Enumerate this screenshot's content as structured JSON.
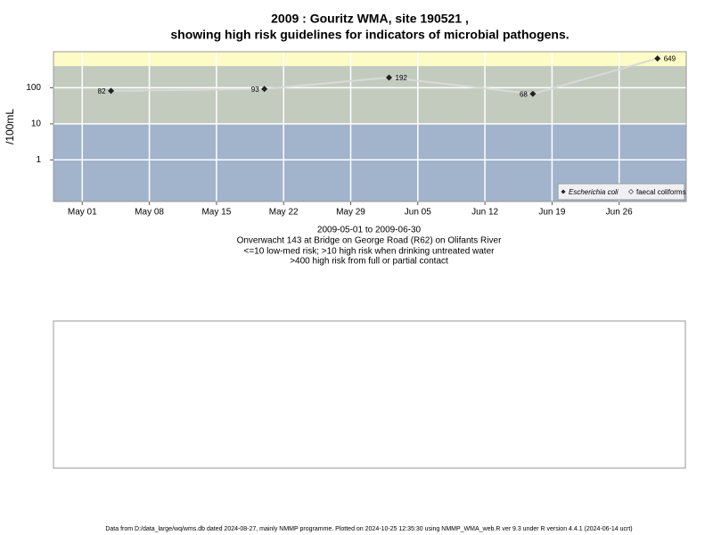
{
  "chart_data": {
    "type": "line",
    "title": "2009 : Gouritz WMA, site 190521 ,",
    "subtitle": "showing high risk guidelines for indicators of microbial pathogens.",
    "ylabel": "/100mL",
    "xlabel": "2009-05-01 to 2009-06-30",
    "notes": [
      "Onverwacht 143 at Bridge on George Road (R62) on Olifants River",
      "<=10 low-med risk; >10 high risk when drinking untreated water",
      ">400 high risk from full or partial contact"
    ],
    "footer": "Data from D:/data_large/wq/wms.db dated 2024-08-27, mainly NMMP programme. Plotted on 2024-10-25 12:35:30 using NMMP_WMA_web.R ver 9.3 under R version 4.4.1 (2024-06-14 ucrt)",
    "x": [
      "2009-05-04",
      "2009-05-20",
      "2009-06-02",
      "2009-06-17",
      "2009-06-30"
    ],
    "series": [
      {
        "name": "Escherichia coli",
        "color": "#222222",
        "line_color": "#d9d9d9",
        "values": [
          82,
          93,
          192,
          68,
          649
        ]
      },
      {
        "name": "faecal coliforms",
        "color": "#ffffff",
        "line_color": "#d9d9d9",
        "values": [
          null,
          null,
          null,
          null,
          null
        ]
      }
    ],
    "xlim": [
      "2009-04-28",
      "2009-07-03"
    ],
    "xticks": [
      {
        "value": "2009-05-01",
        "label": "May 01"
      },
      {
        "value": "2009-05-08",
        "label": "May 08"
      },
      {
        "value": "2009-05-15",
        "label": "May 15"
      },
      {
        "value": "2009-05-22",
        "label": "May 22"
      },
      {
        "value": "2009-05-29",
        "label": "May 29"
      },
      {
        "value": "2009-06-05",
        "label": "Jun 05"
      },
      {
        "value": "2009-06-12",
        "label": "Jun 12"
      },
      {
        "value": "2009-06-19",
        "label": "Jun 19"
      },
      {
        "value": "2009-06-26",
        "label": "Jun 26"
      }
    ],
    "ylim": [
      0.07,
      1000
    ],
    "yticks": [
      1,
      10,
      100
    ],
    "log_y": true,
    "grid": true,
    "legend": "lower right",
    "bands": [
      {
        "from": 400,
        "to": 1000,
        "color": "#fdfbc6"
      },
      {
        "from": 10,
        "to": 400,
        "color": "#c3cbbf"
      },
      {
        "from": 0.07,
        "to": 10,
        "color": "#a2b3cc"
      }
    ]
  }
}
